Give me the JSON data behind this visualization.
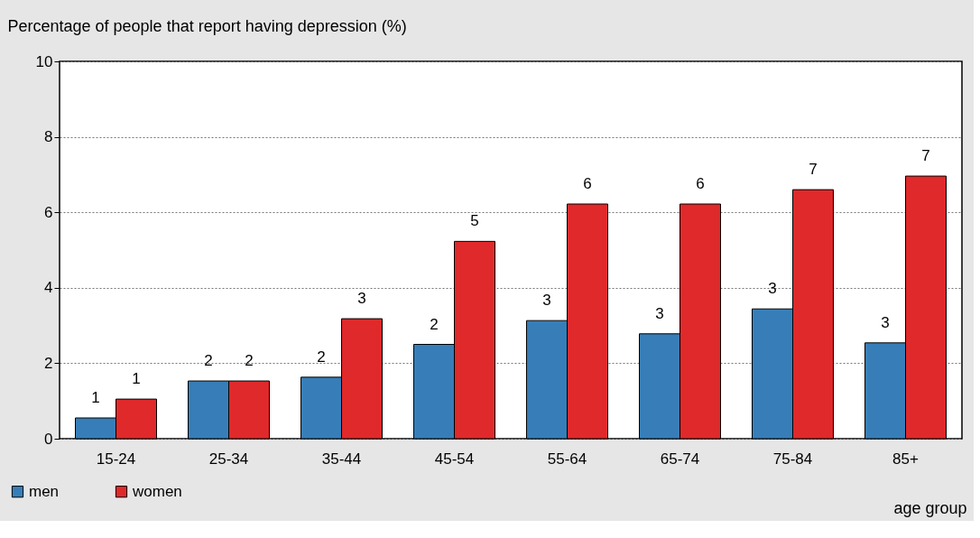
{
  "chart_data": {
    "type": "bar",
    "ylabel": "Percentage of people that report having depression (%)",
    "xlabel": "age group",
    "categories": [
      "15-24",
      "25-34",
      "35-44",
      "45-54",
      "55-64",
      "65-74",
      "75-84",
      "85+"
    ],
    "series": [
      {
        "name": "men",
        "color": "#377eb8",
        "values": [
          0.55,
          1.53,
          1.63,
          2.5,
          3.13,
          2.78,
          3.44,
          2.54
        ],
        "value_labels": [
          "1",
          "2",
          "2",
          "2",
          "3",
          "3",
          "3",
          "3"
        ]
      },
      {
        "name": "women",
        "color": "#e0292a",
        "values": [
          1.05,
          1.53,
          3.18,
          5.23,
          6.22,
          6.22,
          6.6,
          6.96
        ],
        "value_labels": [
          "1",
          "2",
          "3",
          "5",
          "6",
          "6",
          "7",
          "7"
        ]
      }
    ],
    "ylim": [
      0,
      10
    ],
    "yticks": [
      0,
      2,
      4,
      6,
      8,
      10
    ],
    "grid": "y",
    "legend": "bottom left"
  }
}
